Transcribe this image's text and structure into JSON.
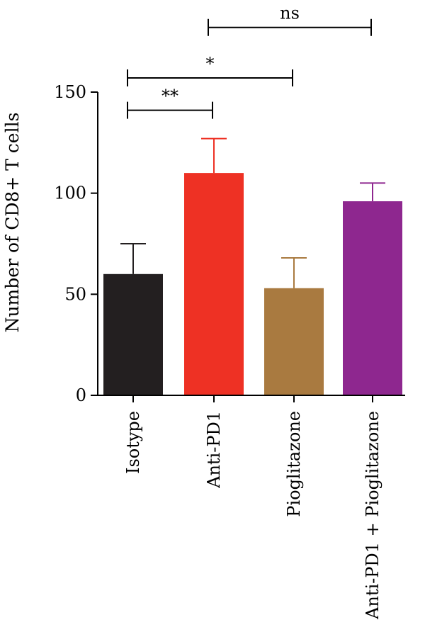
{
  "chart_data": {
    "type": "bar",
    "title": "",
    "xlabel": "",
    "ylabel": "Number of CD8+ T cells",
    "ylim": [
      0,
      150
    ],
    "yticks": [
      0,
      50,
      100,
      150
    ],
    "grid": false,
    "categories": [
      "Isotype",
      "Anti-PD1",
      "Pioglitazone",
      "Anti-PD1 + Pioglitazone"
    ],
    "values": [
      60,
      110,
      53,
      96
    ],
    "errors": [
      15,
      17,
      15,
      9
    ],
    "colors": [
      "#231f20",
      "#ee3124",
      "#a97a40",
      "#8e278f"
    ],
    "significance": [
      {
        "from": 0,
        "to": 1,
        "label": "**",
        "level": 141
      },
      {
        "from": 0,
        "to": 2,
        "label": "*",
        "level": 157
      },
      {
        "from": 1,
        "to": 3,
        "label": "ns",
        "level": 182
      }
    ]
  }
}
